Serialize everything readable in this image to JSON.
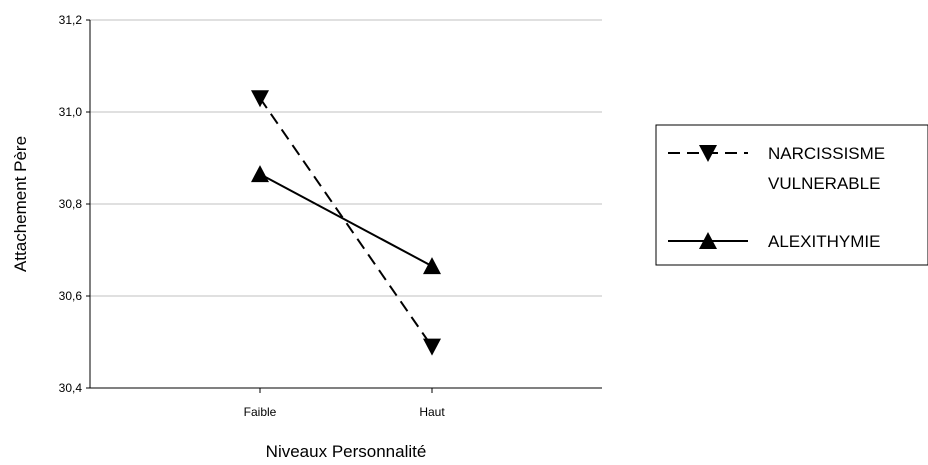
{
  "chart_data": {
    "type": "line",
    "title": "",
    "xlabel": "Niveaux Personnalité",
    "ylabel": "Attachement Père",
    "categories": [
      "Faible",
      "Haut"
    ],
    "ylim": [
      30.4,
      31.2
    ],
    "yticks": [
      "30,4",
      "30,6",
      "30,8",
      "31,0",
      "31,2"
    ],
    "ytick_values": [
      30.4,
      30.6,
      30.8,
      31.0,
      31.2
    ],
    "grid": true,
    "legend_position": "right",
    "series": [
      {
        "name_lines": [
          "NARCISSISME",
          "VULNERABLE"
        ],
        "values": [
          31.03,
          30.49
        ],
        "line_style": "dashed",
        "marker": "triangle-down",
        "color": "#000000"
      },
      {
        "name_lines": [
          "ALEXITHYMIE"
        ],
        "values": [
          30.865,
          30.665
        ],
        "line_style": "solid",
        "marker": "triangle-up",
        "color": "#000000"
      }
    ]
  }
}
